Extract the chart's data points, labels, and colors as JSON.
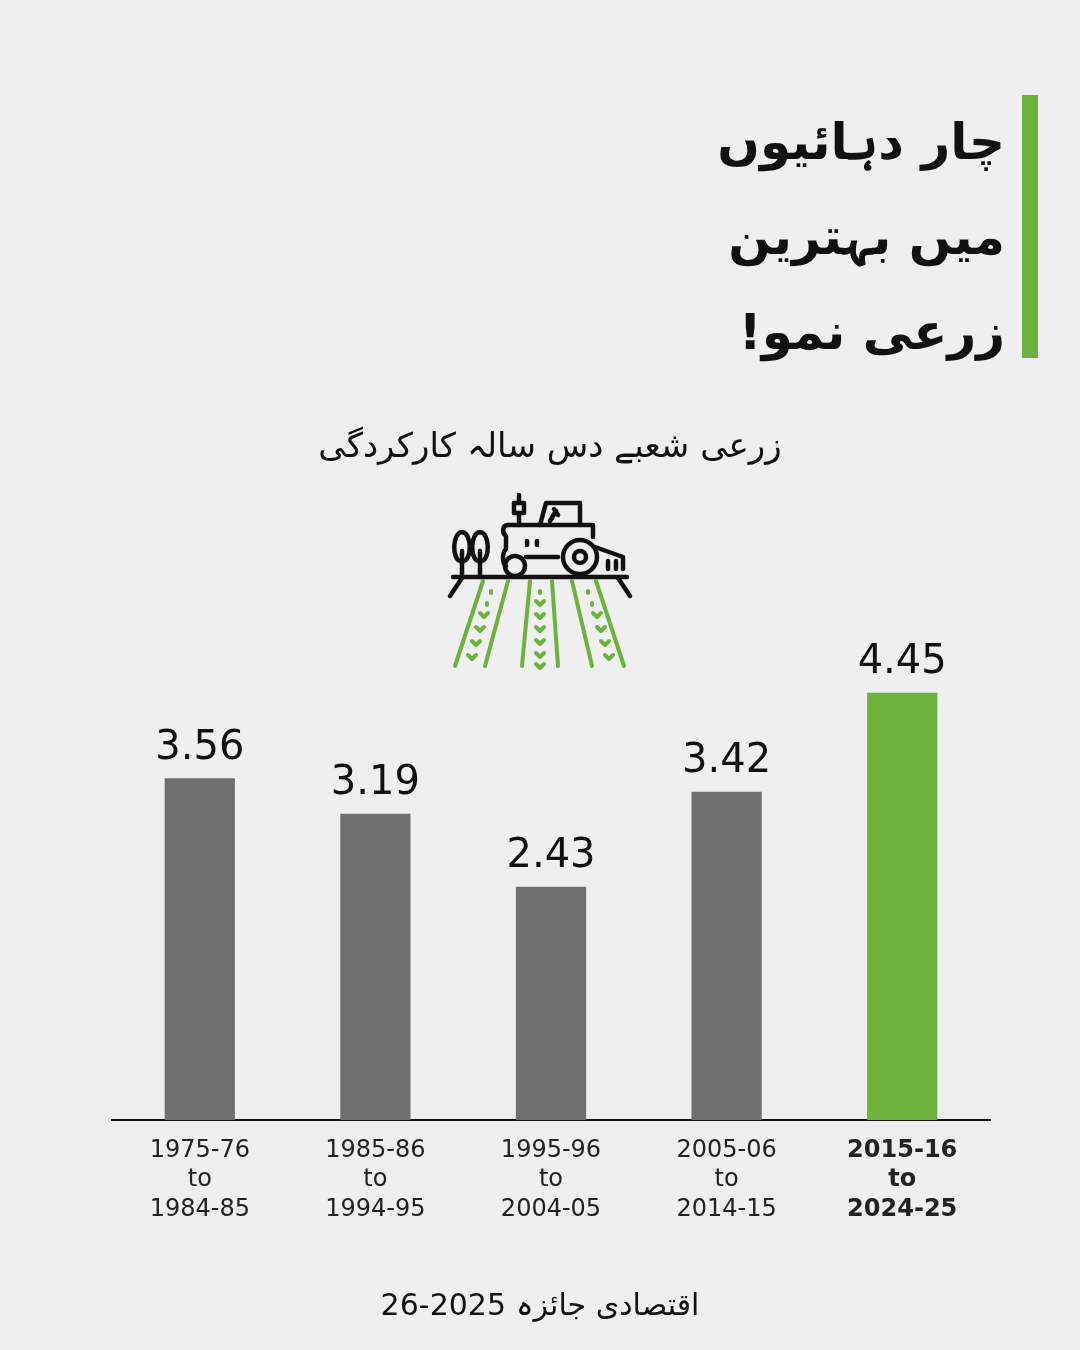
{
  "chart_data": {
    "type": "bar",
    "title": "چار دہائیوں\nمیں بہترین\nزرعی نمو!",
    "subtitle": "زرعی شعبے دس سالہ کارکردگی",
    "annotations": [
      "اقتصادی جائزہ 2025-26"
    ],
    "categories": [
      "1975-76 to 1984-85",
      "1985-86 to 1994-95",
      "1995-96 to 2004-05",
      "2005-06 to 2014-15",
      "2015-16 to 2024-25"
    ],
    "values": [
      3.56,
      3.19,
      2.43,
      3.42,
      4.45
    ],
    "colors": [
      "#6f6f6f",
      "#6f6f6f",
      "#6f6f6f",
      "#6f6f6f",
      "#6cb33e"
    ],
    "data_labels": true,
    "grid": false,
    "legend": false,
    "tick_labels": "x"
  }
}
